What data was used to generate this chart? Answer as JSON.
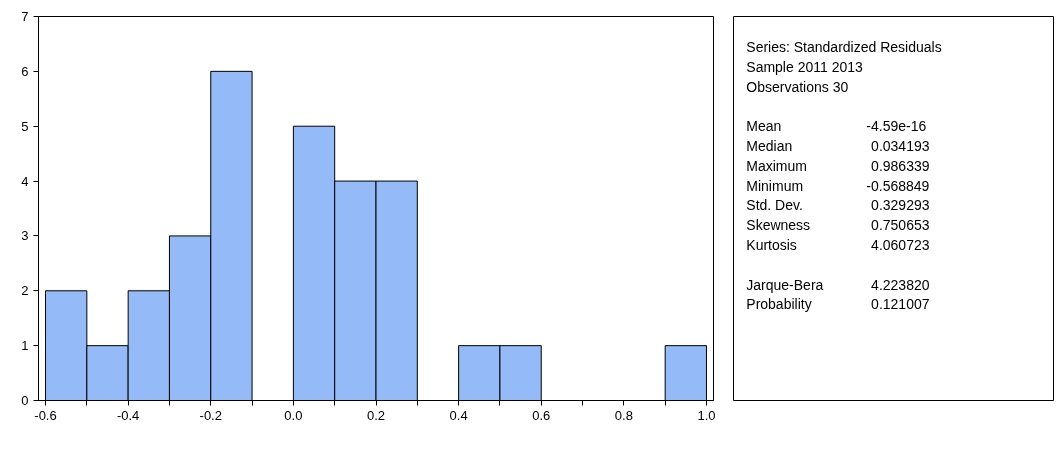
{
  "chart_data": [
    {
      "type": "histogram",
      "bins": [
        -0.6,
        -0.5,
        -0.4,
        -0.3,
        -0.2,
        -0.1,
        0.0,
        0.1,
        0.2,
        0.3,
        0.4,
        0.5,
        0.6,
        0.7,
        0.8,
        0.9,
        1.0
      ],
      "values": [
        2,
        1,
        2,
        3,
        6,
        0,
        5,
        4,
        4,
        0,
        1,
        1,
        0,
        0,
        0,
        1
      ],
      "color": "#94bbf7",
      "xlim": [
        -0.617,
        1.017
      ],
      "ylim": [
        0,
        7
      ],
      "xticks": [
        {
          "value": -0.6,
          "label": "-0.6"
        },
        {
          "value": -0.5,
          "label": null
        },
        {
          "value": -0.4,
          "label": "-0.4"
        },
        {
          "value": -0.3,
          "label": null
        },
        {
          "value": -0.2,
          "label": "-0.2"
        },
        {
          "value": -0.1,
          "label": null
        },
        {
          "value": 0.0,
          "label": "0.0"
        },
        {
          "value": 0.1,
          "label": null
        },
        {
          "value": 0.2,
          "label": "0.2"
        },
        {
          "value": 0.3,
          "label": null
        },
        {
          "value": 0.4,
          "label": "0.4"
        },
        {
          "value": 0.5,
          "label": null
        },
        {
          "value": 0.6,
          "label": "0.6"
        },
        {
          "value": 0.7,
          "label": null
        },
        {
          "value": 0.8,
          "label": "0.8"
        },
        {
          "value": 0.9,
          "label": null
        },
        {
          "value": 1.0,
          "label": "1.0"
        }
      ],
      "yticks": [
        0,
        1,
        2,
        3,
        4,
        5,
        6,
        7
      ],
      "grid": false
    },
    {
      "type": "other",
      "title": "Series: Standardized Residuals",
      "annotations": [
        "Sample 2011 2013",
        "Observations 30"
      ],
      "categories": [
        "Mean",
        "Median",
        "Maximum",
        "Minimum",
        "Std. Dev.",
        "Skewness",
        "Kurtosis",
        null,
        "Jarque-Bera",
        "Probability"
      ],
      "value_labels": [
        "-4.59e-16",
        "0.034193",
        "0.986339",
        "-0.568849",
        "0.329293",
        "0.750653",
        "4.060723",
        null,
        "4.223820",
        "0.121007"
      ]
    }
  ]
}
